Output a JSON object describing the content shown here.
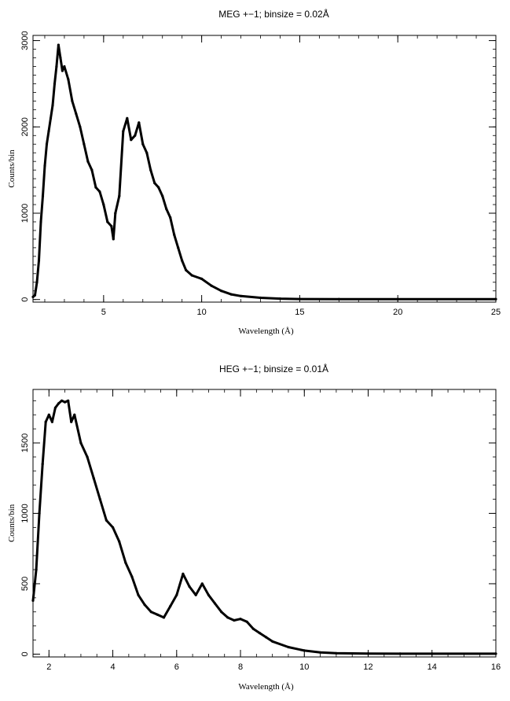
{
  "chart_data": [
    {
      "type": "line",
      "title": "MEG +−1; binsize = 0.02Å",
      "xlabel": "Wavelength (Å)",
      "ylabel": "Counts/bin",
      "xlim": [
        1.4,
        25
      ],
      "ylim": [
        -30,
        3060
      ],
      "xticks": [
        5,
        10,
        15,
        20,
        25
      ],
      "yticks": [
        0,
        1000,
        2000,
        3000
      ],
      "grid": false,
      "series": [
        {
          "x": [
            1.4,
            1.5,
            1.6,
            1.7,
            1.8,
            1.9,
            2.0,
            2.1,
            2.2,
            2.3,
            2.4,
            2.5,
            2.6,
            2.7,
            2.8,
            2.9,
            3.0,
            3.2,
            3.4,
            3.6,
            3.8,
            4.0,
            4.2,
            4.4,
            4.6,
            4.8,
            5.0,
            5.2,
            5.4,
            5.5,
            5.6,
            5.8,
            6.0,
            6.2,
            6.4,
            6.6,
            6.8,
            7.0,
            7.2,
            7.4,
            7.6,
            7.8,
            8.0,
            8.2,
            8.4,
            8.6,
            8.8,
            9.0,
            9.2,
            9.5,
            10.0,
            10.5,
            11.0,
            11.5,
            12.0,
            13.0,
            14.0,
            15.0,
            17.0,
            20.0,
            25.0
          ],
          "y": [
            30,
            50,
            200,
            450,
            900,
            1200,
            1550,
            1800,
            1950,
            2100,
            2250,
            2500,
            2700,
            2950,
            2800,
            2650,
            2700,
            2550,
            2300,
            2150,
            2000,
            1800,
            1600,
            1500,
            1300,
            1250,
            1100,
            900,
            850,
            700,
            1000,
            1200,
            1950,
            2100,
            1850,
            1900,
            2050,
            1800,
            1700,
            1500,
            1350,
            1300,
            1200,
            1050,
            950,
            750,
            600,
            450,
            340,
            280,
            240,
            160,
            100,
            60,
            40,
            20,
            10,
            6,
            5,
            5,
            5
          ]
        }
      ]
    },
    {
      "type": "line",
      "title": "HEG +−1; binsize = 0.01Å",
      "xlabel": "Wavelength (Å)",
      "ylabel": "Counts/bin",
      "xlim": [
        1.5,
        16
      ],
      "ylim": [
        -20,
        1880
      ],
      "xticks": [
        2,
        4,
        6,
        8,
        10,
        12,
        14,
        16
      ],
      "yticks": [
        0,
        500,
        1000,
        1500
      ],
      "grid": false,
      "series": [
        {
          "x": [
            1.5,
            1.6,
            1.7,
            1.8,
            1.9,
            2.0,
            2.1,
            2.2,
            2.3,
            2.4,
            2.5,
            2.6,
            2.7,
            2.8,
            3.0,
            3.2,
            3.4,
            3.6,
            3.8,
            4.0,
            4.2,
            4.4,
            4.6,
            4.8,
            5.0,
            5.2,
            5.4,
            5.6,
            5.8,
            6.0,
            6.2,
            6.4,
            6.6,
            6.8,
            7.0,
            7.2,
            7.4,
            7.6,
            7.8,
            8.0,
            8.2,
            8.4,
            8.6,
            8.8,
            9.0,
            9.5,
            10.0,
            10.5,
            11.0,
            12.0,
            13.0,
            14.0,
            16.0
          ],
          "y": [
            380,
            600,
            1000,
            1350,
            1650,
            1700,
            1650,
            1750,
            1780,
            1800,
            1790,
            1800,
            1650,
            1700,
            1500,
            1400,
            1250,
            1100,
            950,
            900,
            800,
            650,
            550,
            420,
            350,
            300,
            280,
            260,
            340,
            420,
            570,
            480,
            420,
            500,
            420,
            360,
            300,
            260,
            240,
            250,
            230,
            180,
            150,
            120,
            90,
            50,
            25,
            12,
            6,
            4,
            3,
            3,
            3
          ]
        }
      ]
    }
  ]
}
